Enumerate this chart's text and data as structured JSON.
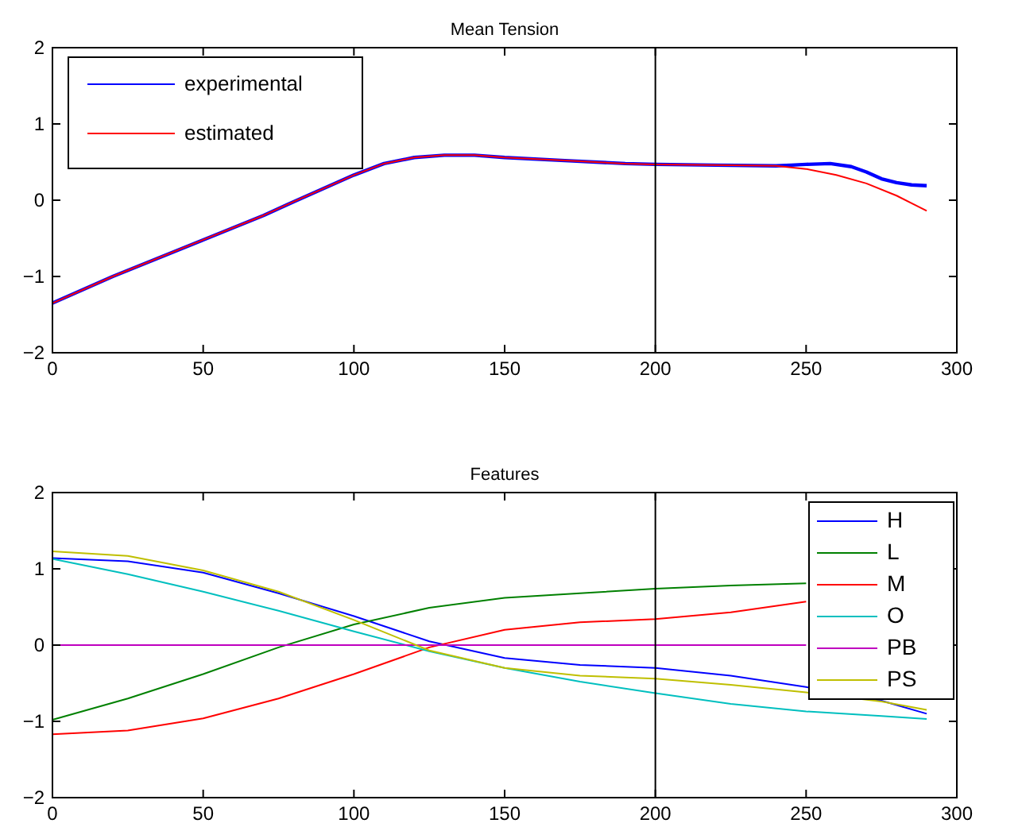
{
  "chart_data": [
    {
      "type": "line",
      "title": "Mean Tension",
      "xlim": [
        0,
        300
      ],
      "xticks": [
        0,
        50,
        100,
        150,
        200,
        250,
        300
      ],
      "ylim": [
        -2,
        2
      ],
      "yticks": [
        -2,
        -1,
        0,
        1,
        2
      ],
      "grid": false,
      "legend": "top left",
      "ref_lines": [
        {
          "axis": "x",
          "value": 200,
          "color": "#000000"
        }
      ],
      "series": [
        {
          "name": "experimental",
          "color": "#0000ff",
          "x": [
            0,
            20,
            50,
            70,
            80,
            100,
            110,
            120,
            130,
            140,
            150,
            170,
            190,
            200,
            220,
            240,
            245,
            250,
            258,
            265,
            270,
            275,
            280,
            285,
            290
          ],
          "values": [
            -1.35,
            -1.0,
            -0.52,
            -0.2,
            -0.02,
            0.33,
            0.48,
            0.56,
            0.59,
            0.59,
            0.56,
            0.52,
            0.48,
            0.47,
            0.46,
            0.45,
            0.46,
            0.47,
            0.48,
            0.44,
            0.37,
            0.28,
            0.23,
            0.2,
            0.19
          ]
        },
        {
          "name": "estimated",
          "color": "#ff0000",
          "x": [
            0,
            20,
            50,
            70,
            80,
            100,
            110,
            120,
            130,
            140,
            150,
            170,
            190,
            200,
            220,
            240,
            250,
            260,
            270,
            280,
            290
          ],
          "values": [
            -1.35,
            -1.0,
            -0.52,
            -0.2,
            -0.02,
            0.33,
            0.48,
            0.56,
            0.59,
            0.59,
            0.56,
            0.52,
            0.48,
            0.47,
            0.46,
            0.45,
            0.41,
            0.33,
            0.22,
            0.06,
            -0.14
          ]
        }
      ]
    },
    {
      "type": "line",
      "title": "Features",
      "x": [
        0,
        25,
        50,
        75,
        100,
        125,
        150,
        175,
        200,
        225,
        250,
        275,
        290
      ],
      "xlim": [
        0,
        300
      ],
      "xticks": [
        0,
        50,
        100,
        150,
        200,
        250,
        300
      ],
      "ylim": [
        -2,
        2
      ],
      "yticks": [
        -2,
        -1,
        0,
        1,
        2
      ],
      "grid": false,
      "legend": "top right",
      "ref_lines": [
        {
          "axis": "x",
          "value": 200,
          "color": "#000000"
        }
      ],
      "series": [
        {
          "name": "H",
          "color": "#0000ff",
          "values": [
            1.14,
            1.1,
            0.95,
            0.68,
            0.38,
            0.05,
            -0.17,
            -0.26,
            -0.3,
            -0.4,
            -0.55,
            -0.73,
            -0.9
          ]
        },
        {
          "name": "L",
          "color": "#008000",
          "values": [
            -0.98,
            -0.7,
            -0.38,
            -0.03,
            0.27,
            0.49,
            0.62,
            0.68,
            0.74,
            0.78,
            0.81,
            null,
            null
          ]
        },
        {
          "name": "M",
          "color": "#ff0000",
          "values": [
            -1.17,
            -1.12,
            -0.96,
            -0.7,
            -0.38,
            -0.03,
            0.2,
            0.3,
            0.34,
            0.43,
            0.57,
            null,
            null
          ]
        },
        {
          "name": "O",
          "color": "#00bfbf",
          "values": [
            1.13,
            0.93,
            0.7,
            0.45,
            0.18,
            -0.08,
            -0.3,
            -0.48,
            -0.63,
            -0.77,
            -0.87,
            -0.93,
            -0.97
          ]
        },
        {
          "name": "PB",
          "color": "#bf00bf",
          "values": [
            0,
            0,
            0,
            0,
            0,
            0,
            0,
            0,
            0,
            0,
            0,
            null,
            null
          ]
        },
        {
          "name": "PS",
          "color": "#bfbf00",
          "values": [
            1.23,
            1.17,
            0.98,
            0.7,
            0.33,
            -0.07,
            -0.3,
            -0.4,
            -0.44,
            -0.52,
            -0.62,
            -0.74,
            -0.85
          ]
        }
      ]
    }
  ]
}
